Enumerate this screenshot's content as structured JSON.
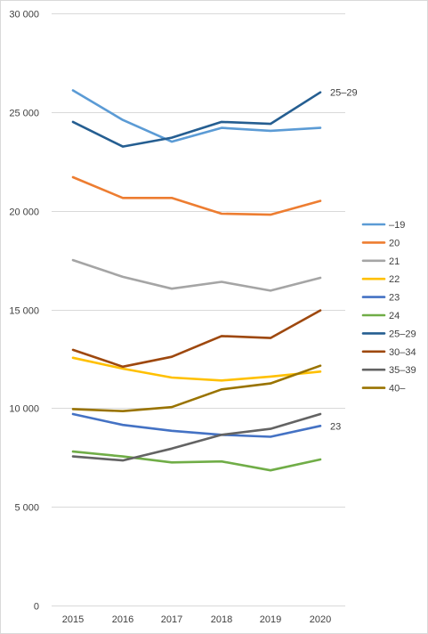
{
  "chart_data": {
    "type": "line",
    "title": "",
    "xlabel": "",
    "ylabel": "",
    "categories": [
      "2015",
      "2016",
      "2017",
      "2018",
      "2019",
      "2020"
    ],
    "ylim": [
      0,
      30000
    ],
    "yticks": [
      0,
      5000,
      10000,
      15000,
      20000,
      25000,
      30000
    ],
    "ytick_labels": [
      "0",
      "5 000",
      "10 000",
      "15 000",
      "20 000",
      "25 000",
      "30 000"
    ],
    "grid": "horizontal",
    "legend_position": "right",
    "series": [
      {
        "name": "–19",
        "color": "#5B9BD5",
        "values": [
          26100,
          24600,
          23500,
          24200,
          24050,
          24200
        ]
      },
      {
        "name": "20",
        "color": "#ED7D31",
        "values": [
          21700,
          20650,
          20650,
          19850,
          19800,
          20500
        ]
      },
      {
        "name": "21",
        "color": "#A5A5A5",
        "values": [
          17500,
          16650,
          16050,
          16400,
          15950,
          16600
        ]
      },
      {
        "name": "22",
        "color": "#FFC000",
        "values": [
          12550,
          12000,
          11550,
          11400,
          11600,
          11850
        ]
      },
      {
        "name": "23",
        "color": "#4472C4",
        "values": [
          9700,
          9150,
          8850,
          8650,
          8550,
          9100
        ]
      },
      {
        "name": "24",
        "color": "#70AD47",
        "values": [
          7800,
          7550,
          7250,
          7300,
          6850,
          7400
        ]
      },
      {
        "name": "25–29",
        "color": "#255E91",
        "values": [
          24500,
          23250,
          23700,
          24500,
          24400,
          26000
        ]
      },
      {
        "name": "30–34",
        "color": "#9E480E",
        "values": [
          12950,
          12100,
          12600,
          13650,
          13550,
          14950
        ]
      },
      {
        "name": "35–39",
        "color": "#636363",
        "values": [
          7550,
          7350,
          7950,
          8650,
          8950,
          9700
        ]
      },
      {
        "name": "40–",
        "color": "#997300",
        "values": [
          9950,
          9850,
          10050,
          10950,
          11250,
          12150
        ]
      }
    ],
    "annotations": [
      {
        "series": "25–29",
        "text": "25–29"
      },
      {
        "series": "23",
        "text": "23"
      }
    ]
  }
}
